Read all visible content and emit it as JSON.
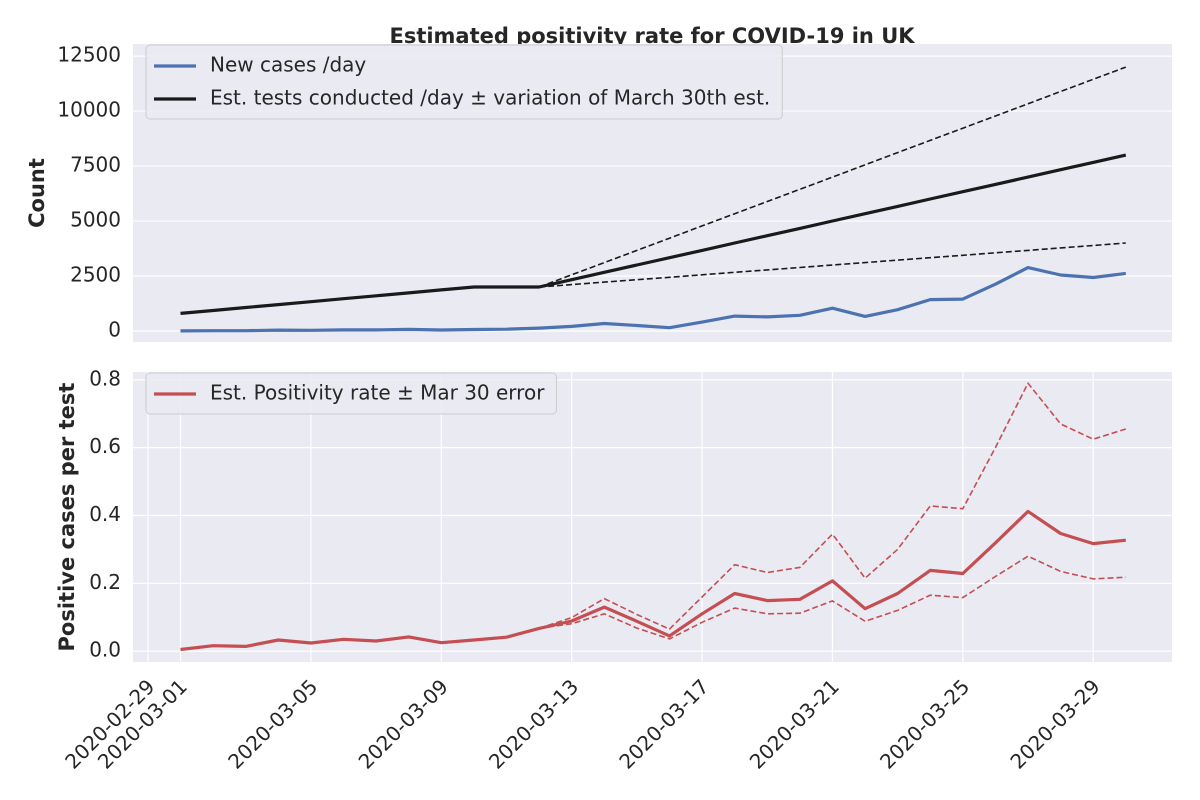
{
  "chart_data": [
    {
      "type": "line",
      "title": "Estimated positivity rate for COVID-19 in UK",
      "ylabel": "Count",
      "x": [
        "2020-03-01",
        "2020-03-02",
        "2020-03-03",
        "2020-03-04",
        "2020-03-05",
        "2020-03-06",
        "2020-03-07",
        "2020-03-08",
        "2020-03-09",
        "2020-03-10",
        "2020-03-11",
        "2020-03-12",
        "2020-03-13",
        "2020-03-14",
        "2020-03-15",
        "2020-03-16",
        "2020-03-17",
        "2020-03-18",
        "2020-03-19",
        "2020-03-20",
        "2020-03-21",
        "2020-03-22",
        "2020-03-23",
        "2020-03-24",
        "2020-03-25",
        "2020-03-26",
        "2020-03-27",
        "2020-03-28",
        "2020-03-29",
        "2020-03-30"
      ],
      "xlim": [
        "2020-02-28T13",
        "2020-03-31T10"
      ],
      "ylim": [
        -500,
        13050
      ],
      "yticks": [
        0,
        2500,
        5000,
        7500,
        10000,
        12500
      ],
      "grid": "y",
      "legend": "upper left",
      "series": [
        {
          "name": "New cases /day",
          "color": "#4c72b0",
          "values": [
            4,
            14,
            13,
            40,
            32,
            50,
            48,
            72,
            46,
            67,
            83,
            134,
            208,
            342,
            251,
            152,
            407,
            676,
            643,
            714,
            1035,
            665,
            967,
            1427,
            1452,
            2129,
            2885,
            2546,
            2433,
            2619
          ]
        },
        {
          "name": "Est. tests conducted /day ± variation of March 30th est.",
          "color": "#1a1a1a",
          "values": [
            800,
            933,
            1067,
            1200,
            1333,
            1467,
            1600,
            1733,
            1867,
            2000,
            2000,
            2000,
            2333,
            2667,
            3000,
            3333,
            3667,
            4000,
            4333,
            4667,
            5000,
            5333,
            5667,
            6000,
            6333,
            6667,
            7000,
            7333,
            7667,
            8000
          ]
        },
        {
          "color": "#1a1a1a",
          "dash": true,
          "values": [
            null,
            null,
            null,
            null,
            null,
            null,
            null,
            null,
            null,
            null,
            null,
            2000,
            2556,
            3111,
            3667,
            4222,
            4778,
            5333,
            5889,
            6444,
            7000,
            7556,
            8111,
            8667,
            9222,
            9778,
            10333,
            10889,
            11444,
            12000
          ]
        },
        {
          "color": "#1a1a1a",
          "dash": true,
          "values": [
            null,
            null,
            null,
            null,
            null,
            null,
            null,
            null,
            null,
            null,
            null,
            2000,
            2111,
            2222,
            2333,
            2444,
            2556,
            2667,
            2778,
            2889,
            3000,
            3111,
            3222,
            3333,
            3444,
            3556,
            3667,
            3778,
            3889,
            4000
          ]
        }
      ]
    },
    {
      "type": "line",
      "ylabel": "Positive cases per test",
      "x": [
        "2020-03-01",
        "2020-03-02",
        "2020-03-03",
        "2020-03-04",
        "2020-03-05",
        "2020-03-06",
        "2020-03-07",
        "2020-03-08",
        "2020-03-09",
        "2020-03-10",
        "2020-03-11",
        "2020-03-12",
        "2020-03-13",
        "2020-03-14",
        "2020-03-15",
        "2020-03-16",
        "2020-03-17",
        "2020-03-18",
        "2020-03-19",
        "2020-03-20",
        "2020-03-21",
        "2020-03-22",
        "2020-03-23",
        "2020-03-24",
        "2020-03-25",
        "2020-03-26",
        "2020-03-27",
        "2020-03-28",
        "2020-03-29",
        "2020-03-30"
      ],
      "xlim": [
        "2020-02-28T13",
        "2020-03-31T10"
      ],
      "xticks": [
        "2020-02-29",
        "2020-03-01",
        "2020-03-05",
        "2020-03-09",
        "2020-03-13",
        "2020-03-17",
        "2020-03-21",
        "2020-03-25",
        "2020-03-29"
      ],
      "ylim": [
        -0.032,
        0.823
      ],
      "yticks": [
        {
          "value": 0,
          "label": "0.0"
        },
        0.2,
        0.4,
        0.6,
        0.8
      ],
      "grid": "both",
      "legend": "upper left",
      "series": [
        {
          "name": "Est. Positivity rate ± Mar 30 error",
          "color": "#c44e52",
          "values": [
            0.005,
            0.016,
            0.014,
            0.033,
            0.024,
            0.035,
            0.03,
            0.042,
            0.025,
            0.033,
            0.041,
            0.067,
            0.089,
            0.13,
            0.088,
            0.045,
            0.11,
            0.17,
            0.149,
            0.153,
            0.207,
            0.125,
            0.17,
            0.238,
            0.229,
            0.319,
            0.412,
            0.347,
            0.317,
            0.327
          ]
        },
        {
          "color": "#c44e52",
          "dash": true,
          "values": [
            null,
            null,
            null,
            null,
            null,
            null,
            null,
            null,
            null,
            null,
            null,
            0.067,
            0.099,
            0.155,
            0.108,
            0.065,
            0.16,
            0.255,
            0.232,
            0.247,
            0.345,
            0.215,
            0.3,
            0.428,
            0.42,
            0.6,
            0.79,
            0.67,
            0.625,
            0.655
          ]
        },
        {
          "color": "#c44e52",
          "dash": true,
          "values": [
            null,
            null,
            null,
            null,
            null,
            null,
            null,
            null,
            null,
            null,
            null,
            0.067,
            0.081,
            0.11,
            0.068,
            0.036,
            0.085,
            0.127,
            0.11,
            0.112,
            0.148,
            0.088,
            0.12,
            0.165,
            0.158,
            0.22,
            0.28,
            0.235,
            0.213,
            0.218
          ]
        }
      ]
    }
  ]
}
